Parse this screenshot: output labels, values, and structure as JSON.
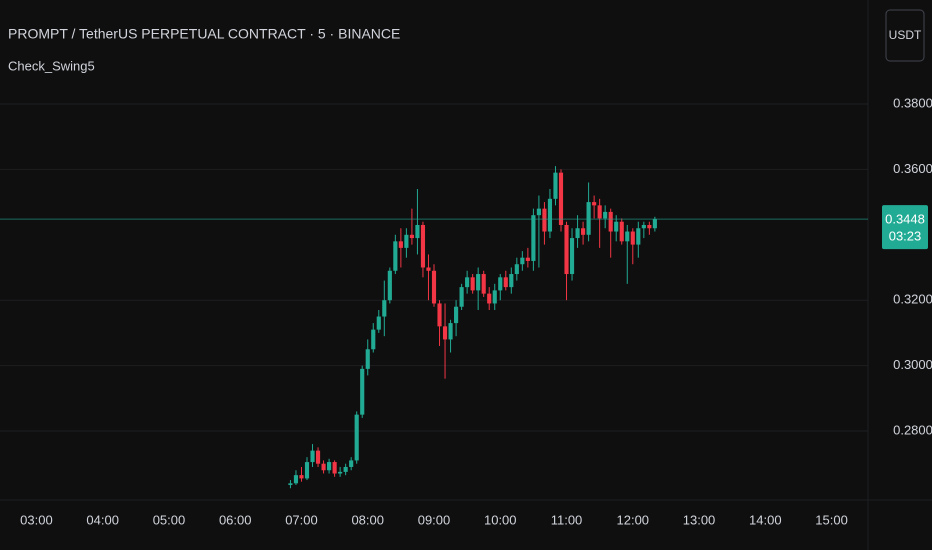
{
  "chart_data": {
    "type": "candlestick",
    "title": "PROMPT / TetherUS PERPETUAL CONTRACT · 5 · BINANCE",
    "indicator": "Check_Swing5",
    "currency": "USDT",
    "countdown": "03:23",
    "up_color": "#22ab94",
    "down_color": "#f23645",
    "grid": true,
    "x": [
      "06:50",
      "06:55",
      "07:00",
      "07:05",
      "07:10",
      "07:15",
      "07:20",
      "07:25",
      "07:30",
      "07:35",
      "07:40",
      "07:45",
      "07:50",
      "07:55",
      "08:00",
      "08:05",
      "08:10",
      "08:15",
      "08:20",
      "08:25",
      "08:30",
      "08:35",
      "08:40",
      "08:45",
      "08:50",
      "08:55",
      "09:00",
      "09:05",
      "09:10",
      "09:15",
      "09:20",
      "09:25",
      "09:30",
      "09:35",
      "09:40",
      "09:45",
      "09:50",
      "09:55",
      "10:00",
      "10:05",
      "10:10",
      "10:15",
      "10:20",
      "10:25",
      "10:30",
      "10:35",
      "10:40",
      "10:45",
      "10:50",
      "10:55",
      "11:00",
      "11:05",
      "11:10",
      "11:15",
      "11:20",
      "11:25",
      "11:30",
      "11:35",
      "11:40",
      "11:45",
      "11:50",
      "11:55",
      "12:00",
      "12:05",
      "12:10",
      "12:15",
      "12:20"
    ],
    "open": [
      0.2635,
      0.264,
      0.2665,
      0.2655,
      0.2705,
      0.274,
      0.27,
      0.268,
      0.2705,
      0.267,
      0.2675,
      0.269,
      0.271,
      0.285,
      0.299,
      0.305,
      0.311,
      0.315,
      0.32,
      0.329,
      0.338,
      0.336,
      0.34,
      0.339,
      0.343,
      0.33,
      0.329,
      0.319,
      0.312,
      0.308,
      0.313,
      0.318,
      0.324,
      0.327,
      0.323,
      0.328,
      0.322,
      0.319,
      0.323,
      0.327,
      0.324,
      0.328,
      0.331,
      0.333,
      0.332,
      0.346,
      0.348,
      0.341,
      0.351,
      0.359,
      0.343,
      0.328,
      0.339,
      0.342,
      0.34,
      0.35,
      0.349,
      0.345,
      0.347,
      0.341,
      0.344,
      0.338,
      0.341,
      0.337,
      0.342,
      0.343,
      0.342
    ],
    "high": [
      0.265,
      0.268,
      0.269,
      0.272,
      0.276,
      0.275,
      0.271,
      0.2715,
      0.271,
      0.269,
      0.27,
      0.272,
      0.286,
      0.3,
      0.308,
      0.313,
      0.317,
      0.326,
      0.33,
      0.34,
      0.342,
      0.342,
      0.348,
      0.354,
      0.344,
      0.334,
      0.331,
      0.32,
      0.319,
      0.314,
      0.32,
      0.325,
      0.329,
      0.328,
      0.33,
      0.329,
      0.324,
      0.325,
      0.328,
      0.329,
      0.33,
      0.333,
      0.335,
      0.336,
      0.348,
      0.352,
      0.35,
      0.354,
      0.361,
      0.36,
      0.344,
      0.342,
      0.346,
      0.344,
      0.356,
      0.352,
      0.351,
      0.349,
      0.348,
      0.346,
      0.345,
      0.343,
      0.342,
      0.344,
      0.344,
      0.344,
      0.3455
    ],
    "low": [
      0.2625,
      0.2635,
      0.2645,
      0.265,
      0.269,
      0.269,
      0.267,
      0.267,
      0.266,
      0.266,
      0.2665,
      0.268,
      0.27,
      0.284,
      0.297,
      0.304,
      0.31,
      0.309,
      0.319,
      0.328,
      0.33,
      0.333,
      0.337,
      0.334,
      0.327,
      0.32,
      0.318,
      0.306,
      0.296,
      0.304,
      0.309,
      0.317,
      0.322,
      0.322,
      0.317,
      0.321,
      0.317,
      0.317,
      0.32,
      0.323,
      0.322,
      0.326,
      0.329,
      0.33,
      0.329,
      0.33,
      0.337,
      0.339,
      0.349,
      0.341,
      0.32,
      0.326,
      0.336,
      0.337,
      0.338,
      0.345,
      0.336,
      0.342,
      0.333,
      0.338,
      0.337,
      0.325,
      0.331,
      0.333,
      0.339,
      0.34,
      0.341
    ],
    "close": [
      0.264,
      0.2665,
      0.2655,
      0.2705,
      0.274,
      0.27,
      0.268,
      0.2705,
      0.267,
      0.2675,
      0.269,
      0.271,
      0.285,
      0.299,
      0.305,
      0.311,
      0.315,
      0.32,
      0.329,
      0.338,
      0.336,
      0.34,
      0.339,
      0.343,
      0.33,
      0.329,
      0.319,
      0.312,
      0.308,
      0.313,
      0.318,
      0.324,
      0.327,
      0.323,
      0.328,
      0.322,
      0.319,
      0.323,
      0.327,
      0.324,
      0.328,
      0.331,
      0.333,
      0.332,
      0.346,
      0.348,
      0.341,
      0.351,
      0.359,
      0.343,
      0.328,
      0.339,
      0.342,
      0.34,
      0.35,
      0.349,
      0.345,
      0.347,
      0.341,
      0.344,
      0.338,
      0.341,
      0.337,
      0.342,
      0.343,
      0.342,
      0.3448
    ],
    "xlim": [
      "02:27",
      "15:33"
    ],
    "xticks": [
      "03:00",
      "04:00",
      "05:00",
      "06:00",
      "07:00",
      "08:00",
      "09:00",
      "10:00",
      "11:00",
      "12:00",
      "13:00",
      "14:00",
      "15:00"
    ],
    "ylim": [
      0.2589,
      0.4118
    ],
    "yticks": [
      {
        "value": 0.28,
        "label": "0.2800"
      },
      {
        "value": 0.3,
        "label": "0.3000"
      },
      {
        "value": 0.32,
        "label": "0.3200"
      },
      {
        "value": 0.36,
        "label": "0.3600"
      },
      {
        "value": 0.38,
        "label": "0.3800"
      }
    ]
  }
}
